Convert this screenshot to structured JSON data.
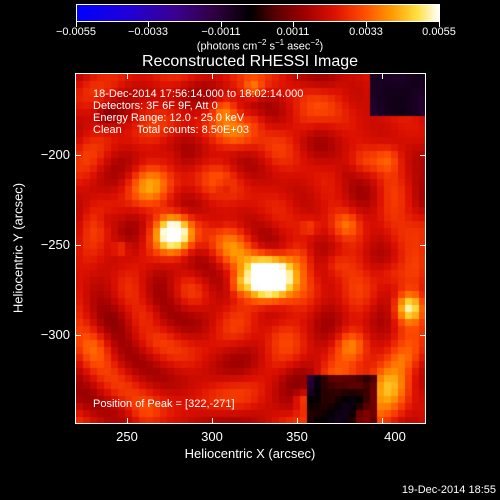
{
  "colorbar": {
    "ticks": [
      "−0.0055",
      "−0.0033",
      "−0.0011",
      "0.0011",
      "0.0033",
      "0.0055"
    ],
    "units_prefix": "(photons cm",
    "units_sup1": "−2",
    "units_mid1": " s",
    "units_sup2": "−1",
    "units_mid2": " asec",
    "units_sup3": "−2",
    "units_suffix": ")"
  },
  "title": "Reconstructed RHESSI Image",
  "info": {
    "line1": "18-Dec-2014 17:56:14.000 to 18:02:14.000",
    "line2": "Detectors: 3F 6F 9F, Att 0",
    "line3": "Energy Range: 12.0 - 25.0 keV",
    "line4": "Clean     Total counts: 8.50E+03",
    "peak": "Position of Peak = [322,-271]"
  },
  "axes": {
    "xlabel": "Heliocentric X (arcsec)",
    "ylabel": "Heliocentric Y (arcsec)",
    "xticks": [
      "250",
      "300",
      "350",
      "400"
    ],
    "yticks": [
      "−200",
      "−250",
      "−300"
    ]
  },
  "footer": "19-Dec-2014 18:55"
}
